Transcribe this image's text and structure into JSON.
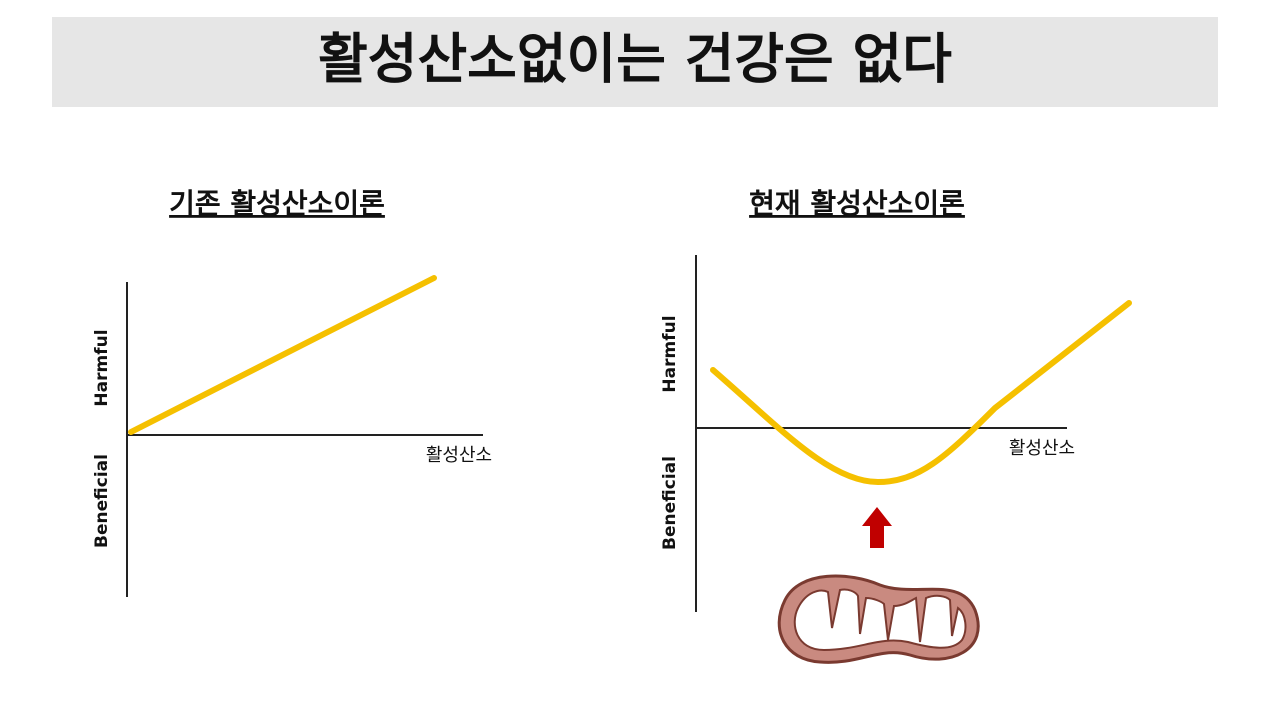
{
  "title": "활성산소없이는 건강은 없다",
  "panels": [
    {
      "heading": "기존 활성산소이론",
      "y_top_label": "Harmful",
      "y_bottom_label": "Beneficial",
      "x_label": "활성산소"
    },
    {
      "heading": "현재 활성산소이론",
      "y_top_label": "Harmful",
      "y_bottom_label": "Beneficial",
      "x_label": "활성산소"
    }
  ]
}
